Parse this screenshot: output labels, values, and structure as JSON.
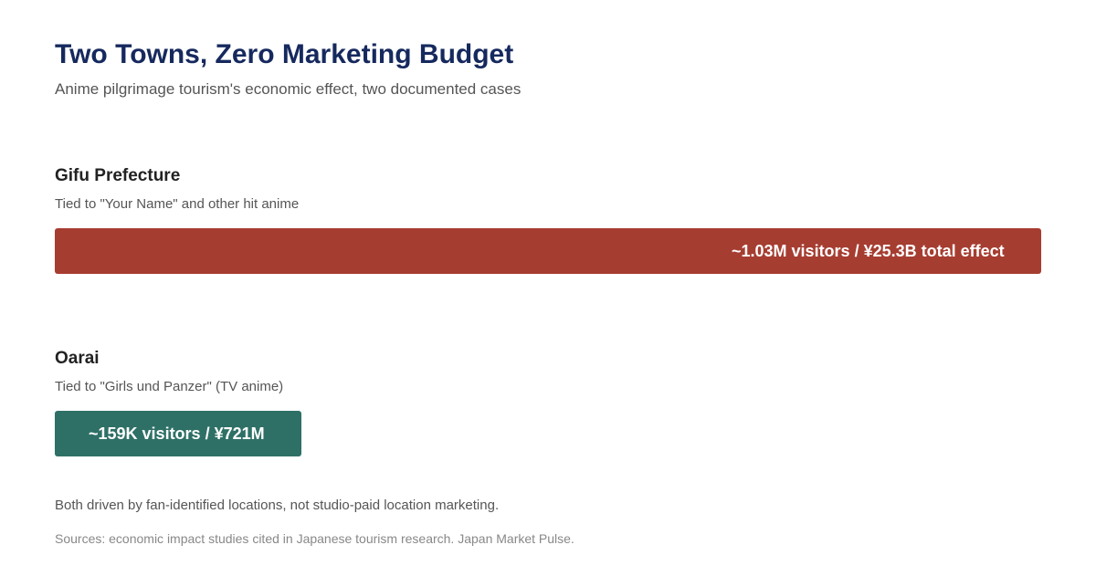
{
  "header": {
    "title": "Two Towns, Zero Marketing Budget",
    "subtitle": "Anime pilgrimage tourism's economic effect, two documented cases"
  },
  "colors": {
    "title": "#16295e",
    "subtitle": "#555555",
    "gifu_bar": "#a63d31",
    "oarai_bar": "#2e7066"
  },
  "chart_data": {
    "type": "bar",
    "orientation": "horizontal",
    "title": "Two Towns, Zero Marketing Budget",
    "subtitle": "Anime pilgrimage tourism's economic effect, two documented cases",
    "categories": [
      "Gifu Prefecture",
      "Oarai"
    ],
    "notes": [
      "Tied to \"Your Name\" and other hit anime",
      "Tied to \"Girls und Panzer\" (TV anime)"
    ],
    "visitors": [
      1030000,
      159000
    ],
    "economic_effect_yen": [
      25300000000,
      721000000
    ],
    "data_labels": [
      "~1.03M visitors / ¥25.3B total effect",
      "~159K visitors / ¥721M"
    ],
    "colors": [
      "#a63d31",
      "#2e7066"
    ],
    "xlabel": "",
    "ylabel": "",
    "grid": false,
    "legend": "none"
  },
  "footer": {
    "note": "Both driven by fan-identified locations, not studio-paid location marketing.",
    "source": "Sources: economic impact studies cited in Japanese tourism research. Japan Market Pulse."
  }
}
